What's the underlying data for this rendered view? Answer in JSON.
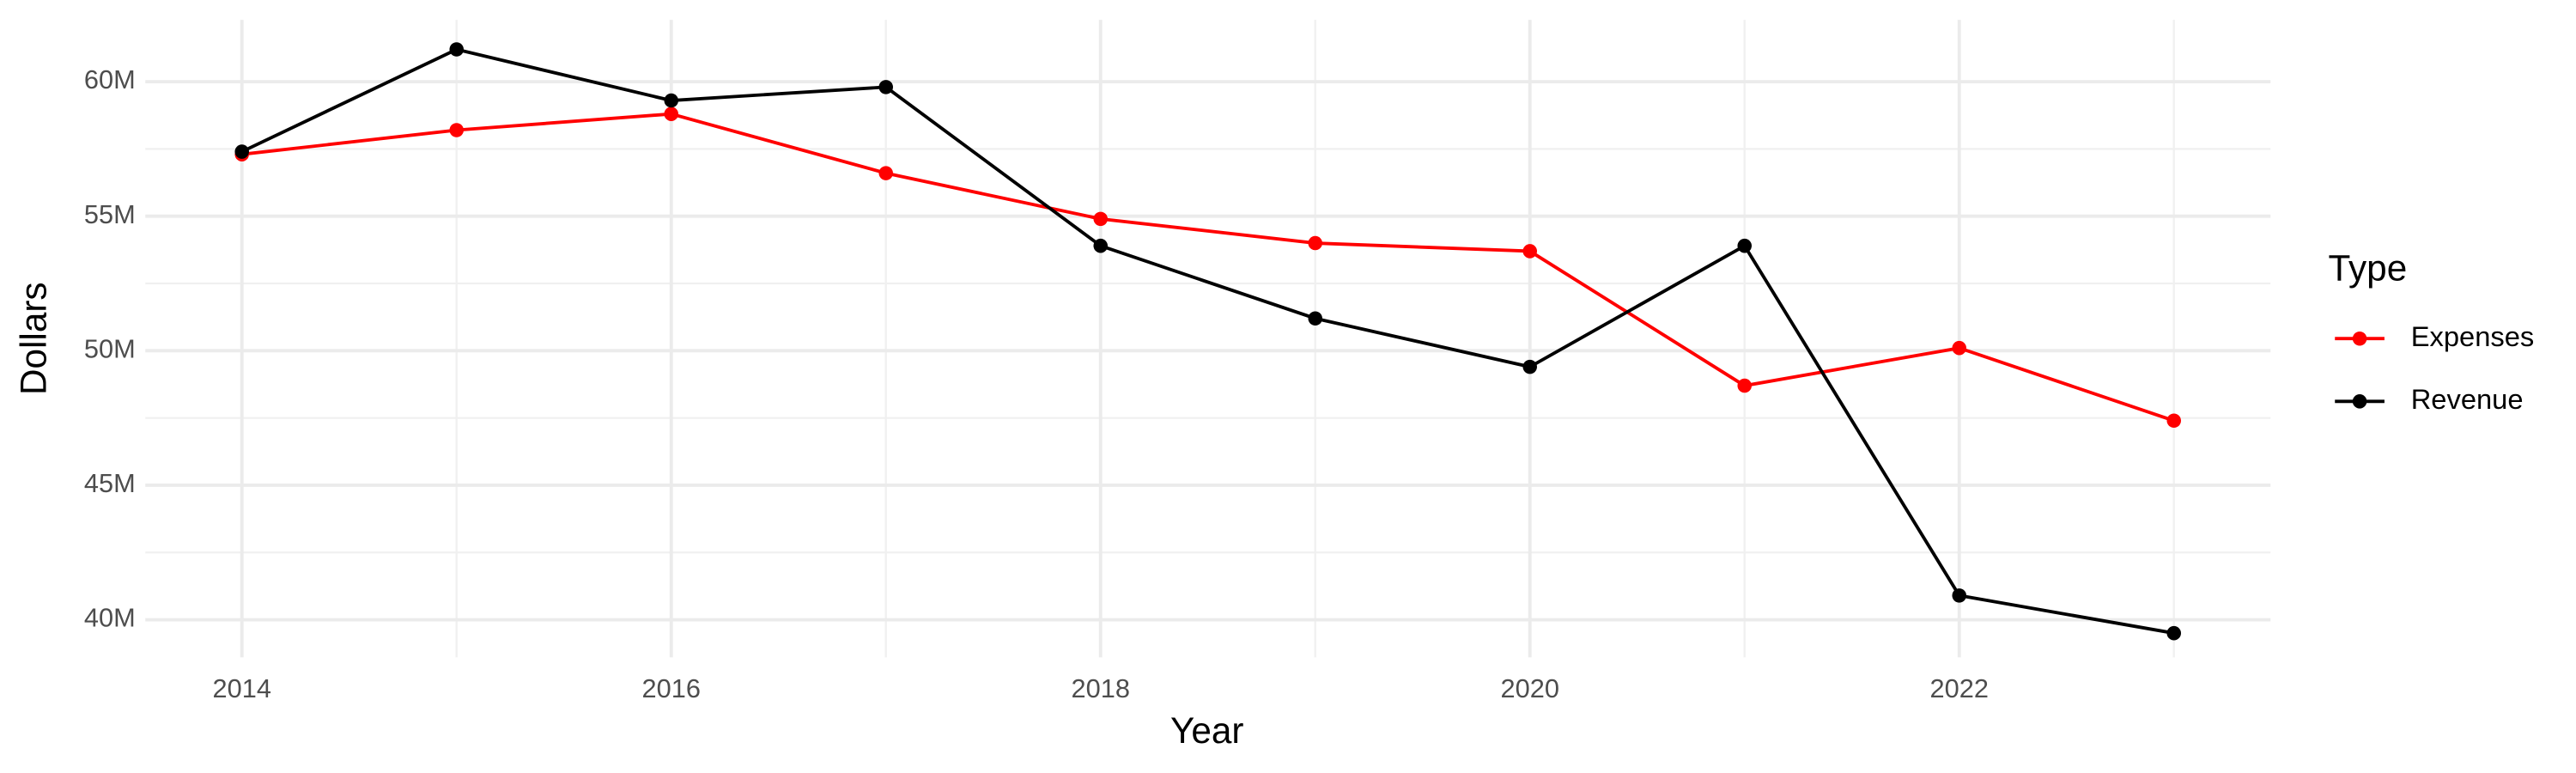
{
  "chart_data": {
    "type": "line",
    "x_label": "Year",
    "y_label": "Dollars",
    "legend_title": "Type",
    "legend_position": "right",
    "grid": true,
    "x": [
      2014,
      2015,
      2016,
      2017,
      2018,
      2019,
      2020,
      2021,
      2022,
      2023
    ],
    "series": [
      {
        "name": "Expenses",
        "color": "#ff0000",
        "values": [
          57300000,
          58200000,
          58800000,
          56600000,
          54900000,
          54000000,
          53700000,
          48700000,
          50100000,
          47400000
        ]
      },
      {
        "name": "Revenue",
        "color": "#000000",
        "values": [
          57400000,
          61200000,
          59300000,
          59800000,
          53900000,
          51200000,
          49400000,
          53900000,
          40900000,
          39500000
        ]
      }
    ],
    "xlim": [
      2013.55,
      2023.45
    ],
    "xticks": [
      2014,
      2016,
      2018,
      2020,
      2022
    ],
    "ylim": [
      38600000,
      62300000
    ],
    "yticks": [
      {
        "value": 40000000,
        "label": "40M"
      },
      {
        "value": 45000000,
        "label": "45M"
      },
      {
        "value": 50000000,
        "label": "50M"
      },
      {
        "value": 55000000,
        "label": "55M"
      },
      {
        "value": 60000000,
        "label": "60M"
      }
    ]
  }
}
